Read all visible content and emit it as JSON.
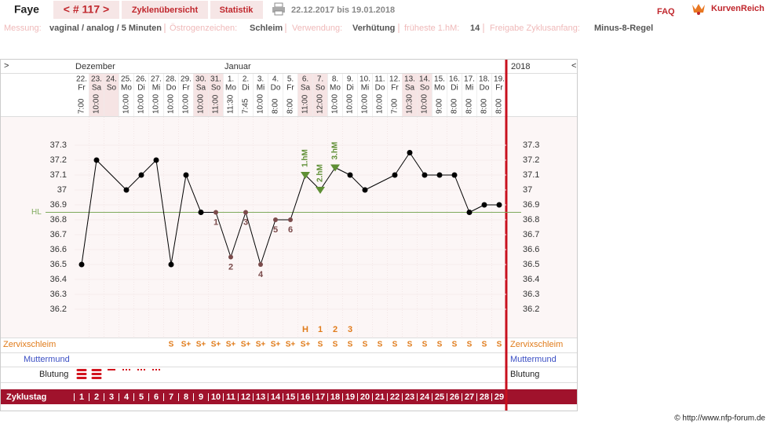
{
  "header": {
    "name": "Faye",
    "cycle_nav": "< # 117 >",
    "tabs": [
      "Zyklenübersicht",
      "Statistik"
    ],
    "date_range": "22.12.2017 bis 19.01.2018",
    "faq": "FAQ",
    "logo": "KurvenReich"
  },
  "info": [
    {
      "label": "Messung:",
      "value": "vaginal / analog / 5 Minuten"
    },
    {
      "label": "Östrogenzeichen:",
      "value": "Schleim"
    },
    {
      "label": "Verwendung:",
      "value": "Verhütung"
    },
    {
      "label": "früheste 1.hM:",
      "value": 14
    },
    {
      "label": "Freigabe Zyklusanfang:",
      "value": "Minus-8-Regel"
    }
  ],
  "footer": "© http://www.nfp-forum.de",
  "chart_data": {
    "type": "line",
    "nav_left": ">",
    "nav_right": "<",
    "year": "2018",
    "months": [
      "Dezember",
      null,
      null,
      null,
      null,
      null,
      null,
      null,
      null,
      null,
      "Januar",
      null,
      null,
      null,
      null,
      null,
      null,
      null,
      null,
      null,
      null,
      null,
      null,
      null,
      null,
      null,
      null,
      null,
      null
    ],
    "dates": [
      "22.",
      "23.",
      "24.",
      "25.",
      "26.",
      "27.",
      "28.",
      "29.",
      "30.",
      "31.",
      "1.",
      "2.",
      "3.",
      "4.",
      "5.",
      "6.",
      "7.",
      "8.",
      "9.",
      "10.",
      "11.",
      "12.",
      "13.",
      "14.",
      "15.",
      "16.",
      "17.",
      "18.",
      "19."
    ],
    "weekdays": [
      "Fr",
      "Sa",
      "So",
      "Mo",
      "Di",
      "Mi",
      "Do",
      "Fr",
      "Sa",
      "So",
      "Mo",
      "Di",
      "Mi",
      "Do",
      "Fr",
      "Sa",
      "So",
      "Mo",
      "Di",
      "Mi",
      "Do",
      "Fr",
      "Sa",
      "So",
      "Mo",
      "Di",
      "Mi",
      "Do",
      "Fr"
    ],
    "times": [
      "7:00",
      "10:00",
      null,
      "10:00",
      "10:00",
      "10:00",
      "10:00",
      "10:00",
      "10:00",
      "11:00",
      "11:30",
      "7:45",
      "10:00",
      "8:00",
      "8:00",
      "11:00",
      "12:00",
      "10:00",
      "10:00",
      "10:00",
      "10:00",
      "7:00",
      "10:30",
      "10:00",
      "9:00",
      "8:00",
      "8:00",
      "8:00",
      "8:00"
    ],
    "values": [
      36.5,
      37.2,
      null,
      37.0,
      37.1,
      37.2,
      36.5,
      37.1,
      36.85,
      36.85,
      36.55,
      36.85,
      36.5,
      36.8,
      36.8,
      37.1,
      37.0,
      37.15,
      37.1,
      37.0,
      null,
      37.1,
      37.25,
      37.1,
      37.1,
      37.1,
      36.85,
      36.9,
      36.9
    ],
    "point_labels": [
      null,
      null,
      null,
      null,
      null,
      null,
      null,
      null,
      null,
      1,
      2,
      3,
      4,
      5,
      6,
      null,
      null,
      null,
      null,
      null,
      null,
      null,
      null,
      null,
      null,
      null,
      null,
      null,
      null
    ],
    "hm_labels": [
      null,
      null,
      null,
      null,
      null,
      null,
      null,
      null,
      null,
      null,
      null,
      null,
      null,
      null,
      null,
      "1.hM",
      "2.hM",
      "3.hM",
      null,
      null,
      null,
      null,
      null,
      null,
      null,
      null,
      null,
      null,
      null
    ],
    "color": "#000000",
    "excluded_color": "#7b4b4b",
    "hm_color": "#5f8f35",
    "coverline": {
      "label": "HL",
      "value": 36.85,
      "color": "#7eaa5c"
    },
    "ylim": [
      36.0,
      37.5
    ],
    "yticks": [
      36.2,
      36.3,
      36.4,
      36.5,
      36.6,
      36.7,
      36.8,
      36.9,
      37,
      37.1,
      37.2,
      37.3
    ],
    "row_labels": {
      "mucus": "Zervixschleim",
      "cervix": "Muttermund",
      "bleeding": "Blutung",
      "cycle_day": "Zyklustag"
    },
    "mucus_peak": [
      null,
      null,
      null,
      null,
      null,
      null,
      null,
      null,
      null,
      null,
      null,
      null,
      null,
      null,
      null,
      "H",
      "1",
      "2",
      "3",
      null,
      null,
      null,
      null,
      null,
      null,
      null,
      null,
      null,
      null
    ],
    "mucus": [
      null,
      null,
      null,
      null,
      null,
      null,
      "S",
      "S+",
      "S+",
      "S+",
      "S+",
      "S+",
      "S+",
      "S+",
      "S+",
      "S+",
      "S",
      "S",
      "S",
      "S",
      "S",
      "S",
      "S",
      "S",
      "S",
      "S",
      "S",
      "S",
      "S"
    ],
    "bleeding": [
      3,
      3,
      2,
      1,
      1,
      1,
      null,
      null,
      null,
      null,
      null,
      null,
      null,
      null,
      null,
      null,
      null,
      null,
      null,
      null,
      null,
      null,
      null,
      null,
      null,
      null,
      null,
      null,
      null
    ],
    "cycle_days": [
      1,
      2,
      3,
      4,
      5,
      6,
      7,
      8,
      9,
      10,
      11,
      12,
      13,
      14,
      15,
      16,
      17,
      18,
      19,
      20,
      21,
      22,
      23,
      24,
      25,
      26,
      27,
      28,
      29
    ]
  }
}
